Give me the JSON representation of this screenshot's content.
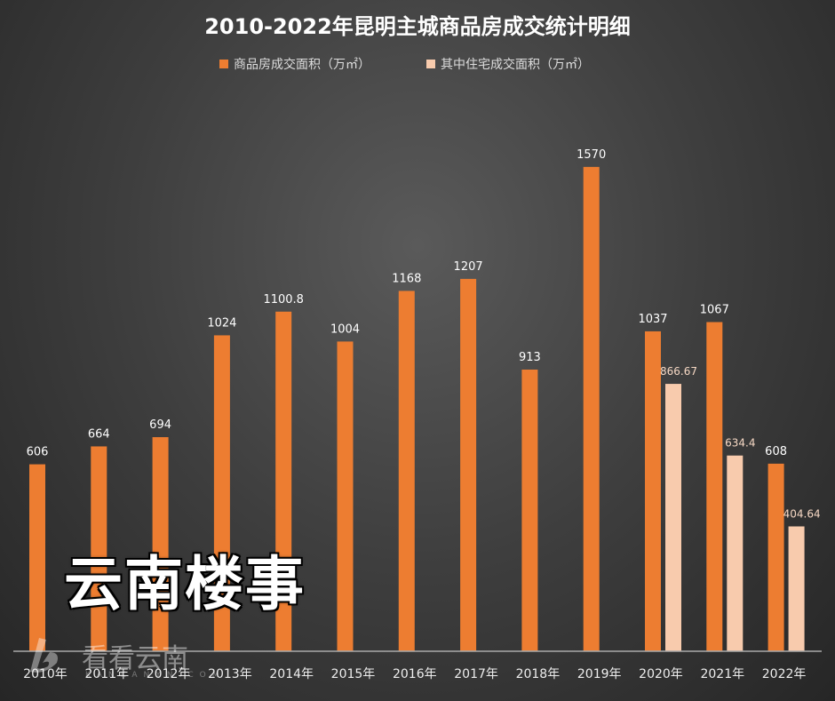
{
  "chart_data": {
    "type": "bar",
    "title": "2010-2022年昆明主城商品房成交统计明细",
    "categories": [
      "2010年",
      "2011年",
      "2012年",
      "2013年",
      "2014年",
      "2015年",
      "2016年",
      "2017年",
      "2018年",
      "2019年",
      "2020年",
      "2021年",
      "2022年"
    ],
    "series": [
      {
        "name": "商品房成交面积（万㎡）",
        "color": "#ED7D31",
        "values": [
          606,
          664,
          694,
          1024,
          1100.8,
          1004,
          1168,
          1207,
          913,
          1570,
          1037,
          1067,
          608
        ],
        "labels": [
          "606",
          "664",
          "694",
          "1024",
          "1100.8",
          "1004",
          "1168",
          "1207",
          "913",
          "1570",
          "1037",
          "1067",
          "608"
        ]
      },
      {
        "name": "其中住宅成交面积（万㎡）",
        "color": "#F8CBAD",
        "values": [
          null,
          null,
          null,
          null,
          null,
          null,
          null,
          null,
          null,
          null,
          866.67,
          634.4,
          404.64
        ],
        "labels": [
          "",
          "",
          "",
          "",
          "",
          "",
          "",
          "",
          "",
          "",
          "866.67",
          "634.4",
          "404.64"
        ]
      }
    ],
    "xlabel": "",
    "ylabel": "",
    "ylim": [
      0,
      1800
    ],
    "grid": false,
    "legend": "top"
  },
  "watermark": {
    "text": "云南楼事",
    "logo_text": "看看云南",
    "logo_sub": "KANKANYN.COM"
  }
}
